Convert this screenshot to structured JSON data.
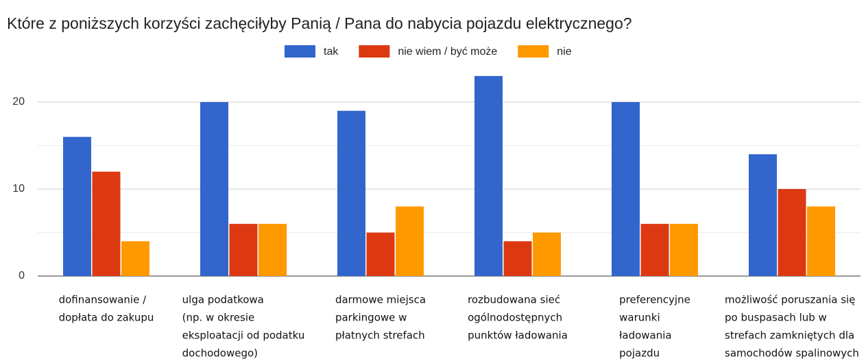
{
  "chart_data": {
    "type": "bar",
    "title": "Które z poniższych korzyści zachęciłyby Panią / Pana do nabycia pojazdu elektrycznego?",
    "categories": [
      [
        "dofinansowanie /",
        "dopłata do zakupu"
      ],
      [
        "ulga podatkowa",
        "(np. w okresie",
        "eksploatacji od podatku",
        "dochodowego)"
      ],
      [
        "darmowe miejsca",
        "parkingowe w",
        "płatnych strefach"
      ],
      [
        "rozbudowana sieć",
        "ogólnodostępnych",
        "punktów ładowania"
      ],
      [
        "preferencyjne",
        "warunki",
        "ładowania",
        "pojazdu"
      ],
      [
        "możliwość poruszania się",
        "po buspasach lub w",
        "strefach zamkniętych dla",
        "samochodów spalinowych"
      ]
    ],
    "series": [
      {
        "name": "tak",
        "color": "#3366cc",
        "values": [
          16,
          20,
          19,
          23,
          20,
          14
        ]
      },
      {
        "name": "nie wiem / być może",
        "color": "#dc3912",
        "values": [
          12,
          6,
          5,
          4,
          6,
          10
        ]
      },
      {
        "name": "nie",
        "color": "#ff9900",
        "values": [
          4,
          6,
          8,
          5,
          6,
          8
        ]
      }
    ],
    "ylim": [
      0,
      25
    ],
    "yticks": [
      0,
      10,
      20
    ],
    "minor_yticks": [
      5,
      15
    ],
    "grid": true,
    "legend": "top"
  }
}
